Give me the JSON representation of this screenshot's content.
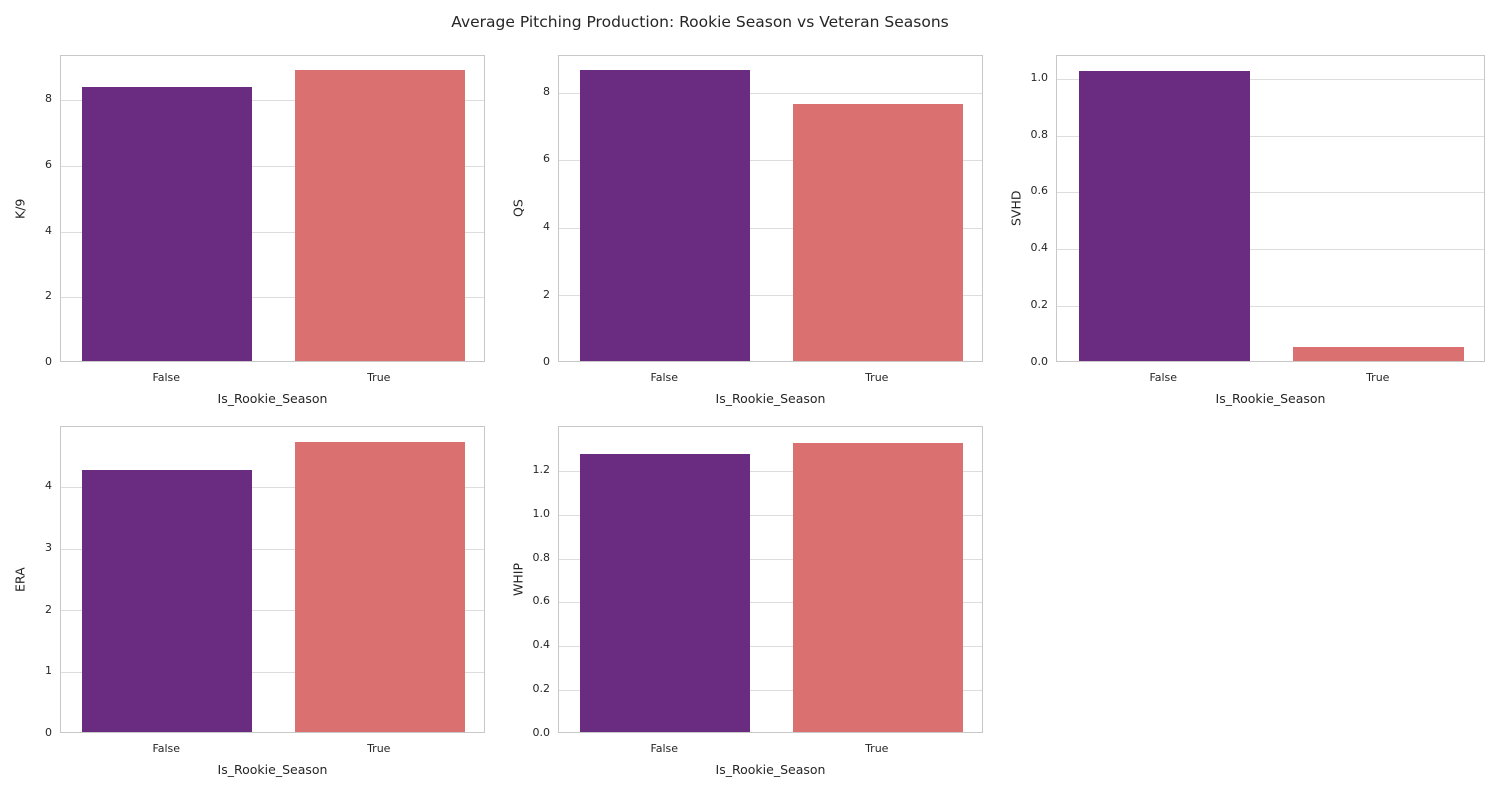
{
  "title": "Average Pitching Production: Rookie Season vs Veteran Seasons",
  "figure": {
    "background": "#ffffff",
    "spine_color": "#c8c8c8",
    "grid_color": "#dddddd",
    "text_color": "#262626"
  },
  "palette": {
    "bar_false": "#6A2C80",
    "bar_true": "#DB7070"
  },
  "chart_data": [
    {
      "type": "bar",
      "id": "k9",
      "ylabel": "K/9",
      "xlabel": "Is_Rookie_Season",
      "categories": [
        "False",
        "True"
      ],
      "values": [
        8.33,
        8.85
      ],
      "yticks": [
        0,
        2,
        4,
        6,
        8
      ],
      "ytick_labels": [
        "0",
        "2",
        "4",
        "6",
        "8"
      ],
      "ylim": [
        0,
        9.34
      ],
      "grid": "horizontal",
      "legend": false
    },
    {
      "type": "bar",
      "id": "qs",
      "ylabel": "QS",
      "xlabel": "Is_Rookie_Season",
      "categories": [
        "False",
        "True"
      ],
      "values": [
        8.61,
        7.6
      ],
      "yticks": [
        0,
        2,
        4,
        6,
        8
      ],
      "ytick_labels": [
        "0",
        "2",
        "4",
        "6",
        "8"
      ],
      "ylim": [
        0,
        9.09
      ],
      "grid": "horizontal",
      "legend": false
    },
    {
      "type": "bar",
      "id": "svhd",
      "ylabel": "SVHD",
      "xlabel": "Is_Rookie_Season",
      "categories": [
        "False",
        "True"
      ],
      "values": [
        1.02,
        0.05
      ],
      "yticks": [
        0,
        0.2,
        0.4,
        0.6,
        0.8,
        1.0
      ],
      "ytick_labels": [
        "0.0",
        "0.2",
        "0.4",
        "0.6",
        "0.8",
        "1.0"
      ],
      "ylim": [
        0,
        1.08
      ],
      "grid": "horizontal",
      "legend": false
    },
    {
      "type": "bar",
      "id": "era",
      "ylabel": "ERA",
      "xlabel": "Is_Rookie_Season",
      "categories": [
        "False",
        "True"
      ],
      "values": [
        4.25,
        4.7
      ],
      "yticks": [
        0,
        1,
        2,
        3,
        4
      ],
      "ytick_labels": [
        "0",
        "1",
        "2",
        "3",
        "4"
      ],
      "ylim": [
        0,
        4.97
      ],
      "grid": "horizontal",
      "legend": false
    },
    {
      "type": "bar",
      "id": "whip",
      "ylabel": "WHIP",
      "xlabel": "Is_Rookie_Season",
      "categories": [
        "False",
        "True"
      ],
      "values": [
        1.27,
        1.32
      ],
      "yticks": [
        0,
        0.2,
        0.4,
        0.6,
        0.8,
        1.0,
        1.2
      ],
      "ytick_labels": [
        "0.0",
        "0.2",
        "0.4",
        "0.6",
        "0.8",
        "1.0",
        "1.2"
      ],
      "ylim": [
        0,
        1.4
      ],
      "grid": "horizontal",
      "legend": false
    }
  ],
  "grid_layout": "2 rows x 3 cols, bottom-right cell empty"
}
